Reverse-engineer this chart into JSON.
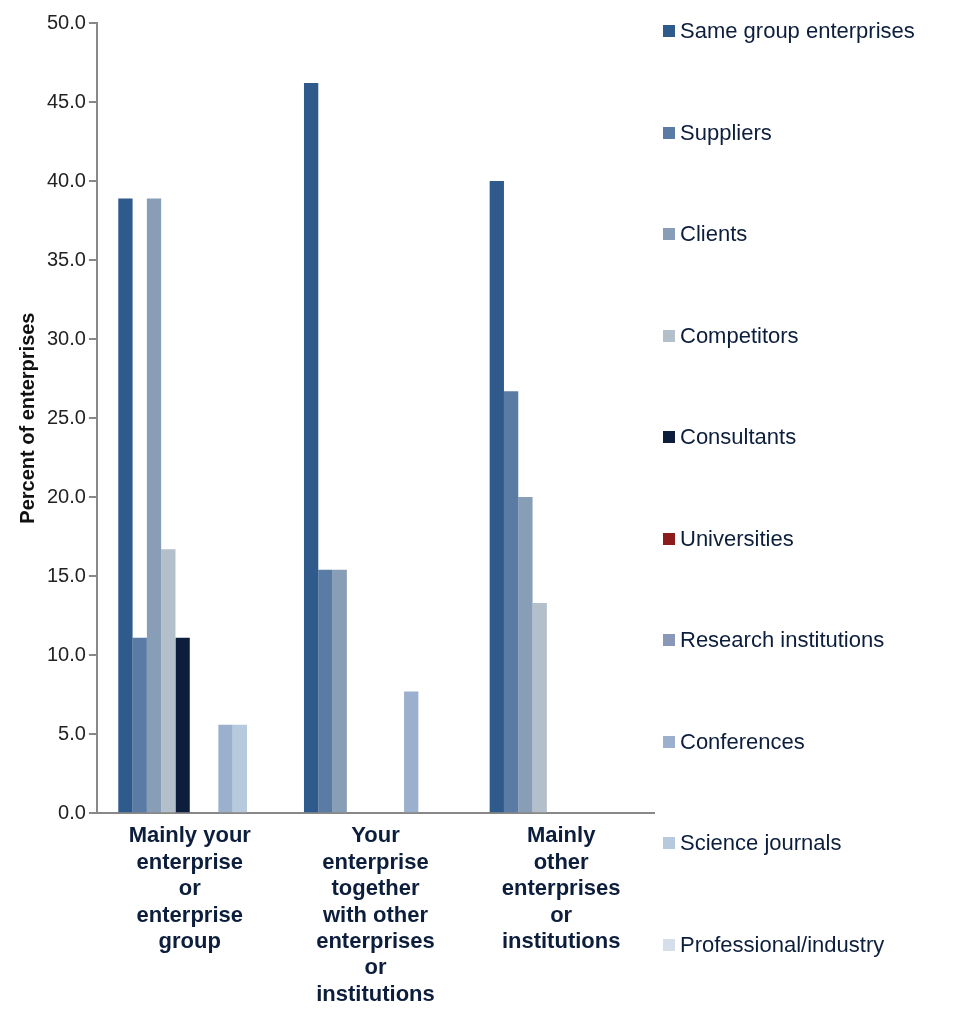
{
  "chart_data": {
    "type": "bar",
    "ylabel": "Percent of enterprises",
    "categories": [
      "Mainly your enterprise or enterprise group",
      "Your enterprise together with other enterprises or institutions",
      "Mainly other enterprises or institutions"
    ],
    "series": [
      {
        "name": "Same group enterprises",
        "color": "#2e5b8b",
        "values": [
          38.9,
          46.2,
          40.0
        ]
      },
      {
        "name": "Suppliers",
        "color": "#5a7ca4",
        "values": [
          11.1,
          15.4,
          26.7
        ]
      },
      {
        "name": "Clients",
        "color": "#889eb6",
        "values": [
          38.9,
          15.4,
          20.0
        ]
      },
      {
        "name": "Competitors",
        "color": "#b3bfcb",
        "values": [
          16.7,
          0,
          13.3
        ]
      },
      {
        "name": "Consultants",
        "color": "#0c1e3c",
        "values": [
          11.1,
          0,
          0
        ]
      },
      {
        "name": "Universities",
        "color": "#8c1c1c",
        "values": [
          0,
          0,
          0
        ]
      },
      {
        "name": "Research institutions",
        "color": "#8898b6",
        "values": [
          0,
          0,
          0
        ]
      },
      {
        "name": "Conferences",
        "color": "#9bb0cc",
        "values": [
          5.6,
          7.7,
          0
        ]
      },
      {
        "name": "Science journals",
        "color": "#b7c9dd",
        "values": [
          5.6,
          0,
          0
        ]
      },
      {
        "name": "Professional/industry",
        "color": "#d6dfe9",
        "values": [
          0,
          0,
          0
        ]
      }
    ],
    "ylim": [
      0,
      50
    ],
    "yticks": [
      {
        "value": 0,
        "label": "0.0"
      },
      {
        "value": 5,
        "label": "5.0"
      },
      {
        "value": 10,
        "label": "10.0"
      },
      {
        "value": 15,
        "label": "15.0"
      },
      {
        "value": 20,
        "label": "20.0"
      },
      {
        "value": 25,
        "label": "25.0"
      },
      {
        "value": 30,
        "label": "30.0"
      },
      {
        "value": 35,
        "label": "35.0"
      },
      {
        "value": 40,
        "label": "40.0"
      },
      {
        "value": 45,
        "label": "45.0"
      },
      {
        "value": 50,
        "label": "50.0"
      }
    ],
    "grid": false,
    "legend": "right"
  }
}
